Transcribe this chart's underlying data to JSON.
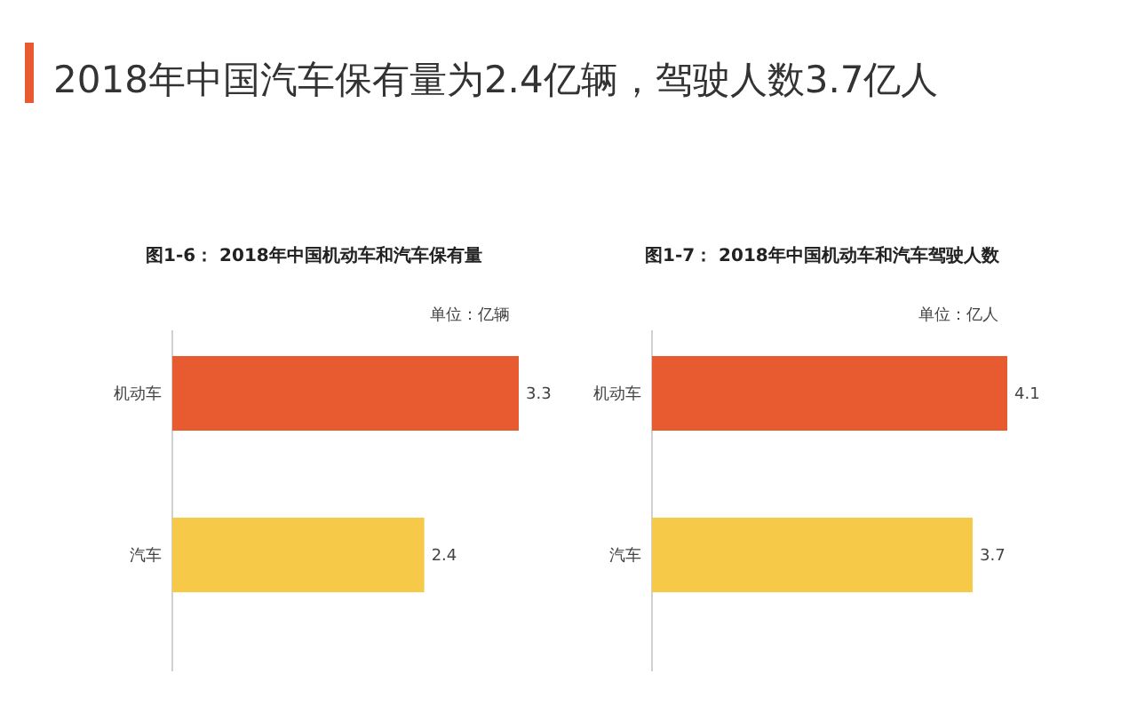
{
  "chart_data": [
    {
      "type": "bar",
      "orientation": "horizontal",
      "title": "2018年中国汽车保有量为2.4亿辆，驾驶人数3.7亿人",
      "subtitle": "图1-6： 2018年中国机动车和汽车保有量",
      "annotations": [
        "单位：亿辆"
      ],
      "categories": [
        "机动车",
        "汽车"
      ],
      "values": [
        3.3,
        2.4
      ],
      "colors": [
        "#e85a30",
        "#f7c948"
      ],
      "data_labels": true
    },
    {
      "type": "bar",
      "orientation": "horizontal",
      "title": "图1-7： 2018年中国机动车和汽车驾驶人数",
      "annotations": [
        "单位：亿人"
      ],
      "categories": [
        "机动车",
        "汽车"
      ],
      "values": [
        4.1,
        3.7
      ],
      "colors": [
        "#e85a30",
        "#f7c948"
      ],
      "data_labels": true
    }
  ]
}
